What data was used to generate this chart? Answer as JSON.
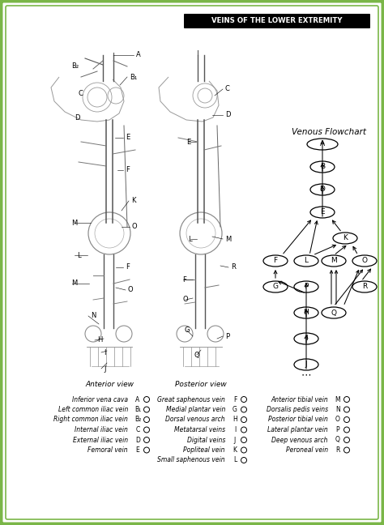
{
  "title": "VEINS OF THE LOWER EXTREMITY",
  "bg_color": "#ffffff",
  "border_color_outer": "#7ab648",
  "border_color_inner": "#7ab648",
  "flowchart_title": "Venous Flowchart",
  "legend_col1": [
    [
      "Inferior vena cava",
      "A"
    ],
    [
      "Left common iliac vein",
      "B₁"
    ],
    [
      "Right common iliac vein",
      "B₂"
    ],
    [
      "Internal iliac vein",
      "C"
    ],
    [
      "External iliac vein",
      "D"
    ],
    [
      "Femoral vein",
      "E"
    ]
  ],
  "legend_col2": [
    [
      "Great saphenous vein",
      "F"
    ],
    [
      "Medial plantar vein",
      "G"
    ],
    [
      "Dorsal venous arch",
      "H"
    ],
    [
      "Metatarsal veins",
      "I"
    ],
    [
      "Digital veins",
      "J"
    ],
    [
      "Popliteal vein",
      "K"
    ],
    [
      "Small saphenous vein",
      "L"
    ]
  ],
  "legend_col3": [
    [
      "Anterior tibial vein",
      "M"
    ],
    [
      "Dorsalis pedis veins",
      "N"
    ],
    [
      "Posterior tibial vein",
      "O"
    ],
    [
      "Lateral plantar vein",
      "P"
    ],
    [
      "Deep venous arch",
      "Q"
    ],
    [
      "Peroneal vein",
      "R"
    ]
  ],
  "anterior_view_label": "Anterior view",
  "posterior_view_label": "Posterior view"
}
